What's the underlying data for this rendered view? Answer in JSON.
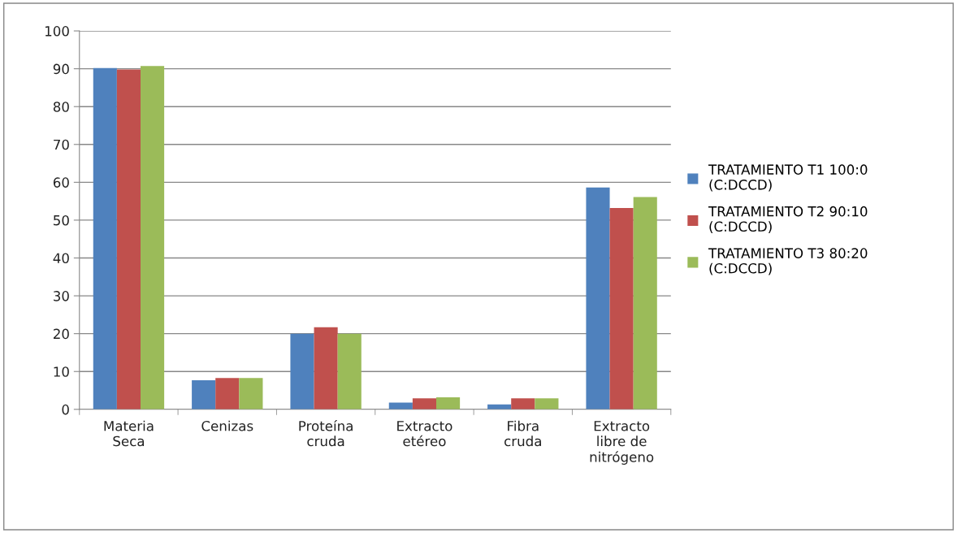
{
  "chart_data": {
    "type": "bar",
    "categories": [
      "Materia Seca",
      "Cenizas",
      "Proteína cruda",
      "Extracto etéreo",
      "Fibra cruda",
      "Extracto libre de nitrógeno"
    ],
    "series": [
      {
        "name": "TRATAMIENTO T1 100:0 (C:DCCD)",
        "color": "#4f81bd",
        "values": [
          90.2,
          7.7,
          20.0,
          1.8,
          1.3,
          58.6
        ]
      },
      {
        "name": "TRATAMIENTO T2 90:10 (C:DCCD)",
        "color": "#c0504d",
        "values": [
          89.8,
          8.3,
          21.7,
          2.9,
          2.9,
          53.2
        ]
      },
      {
        "name": "TRATAMIENTO T3 80:20 (C:DCCD)",
        "color": "#9bbb59",
        "values": [
          90.7,
          8.3,
          20.0,
          3.2,
          2.9,
          56.1
        ]
      }
    ],
    "ylim": [
      0,
      100
    ],
    "yticks": [
      0,
      10,
      20,
      30,
      40,
      50,
      60,
      70,
      80,
      90,
      100
    ],
    "grid": "y",
    "legend": "right"
  }
}
